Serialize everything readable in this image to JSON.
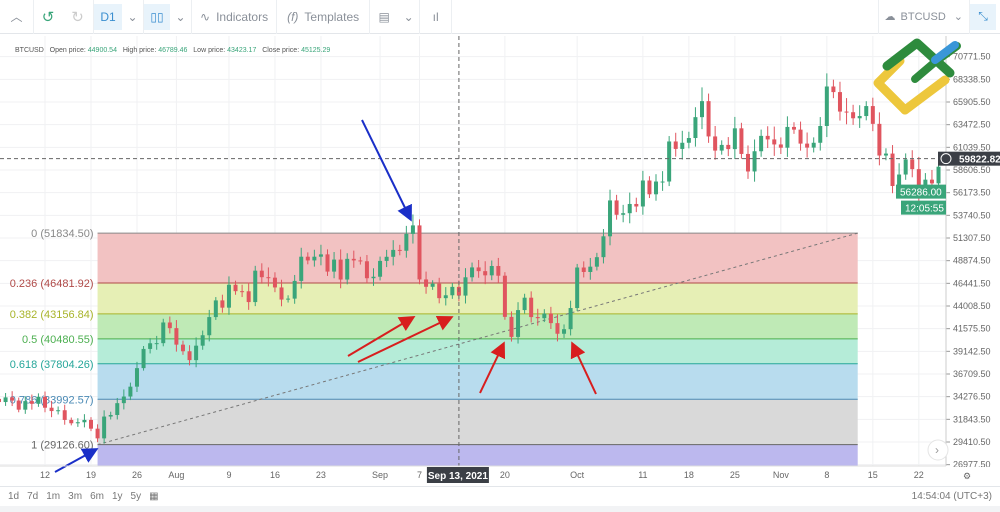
{
  "toolbar": {
    "timeframe": "D1",
    "indicators": "Indicators",
    "templates": "Templates",
    "symbol": "BTCUSD"
  },
  "legend": {
    "symbol": "BTCUSD",
    "open_label": "Open price:",
    "open": "44900.54",
    "high_label": "High price:",
    "high": "46789.46",
    "low_label": "Low price:",
    "low": "43423.17",
    "close_label": "Close price:",
    "close": "45125.29"
  },
  "price_axis": [
    "70771.50",
    "68338.50",
    "65905.50",
    "63472.50",
    "61039.50",
    "58606.50",
    "56173.50",
    "53740.50",
    "51307.50",
    "48874.50",
    "46441.50",
    "44008.50",
    "41575.50",
    "39142.50",
    "36709.50",
    "34276.50",
    "31843.50",
    "29410.50",
    "26977.50"
  ],
  "crosshair": {
    "price": "59822.82",
    "date": "Sep 13, 2021"
  },
  "last_price": {
    "price": "56286.00",
    "countdown": "12:05:55",
    "color": "#3aa57a"
  },
  "time_axis": [
    [
      "12",
      0
    ],
    [
      "19",
      7
    ],
    [
      "26",
      14
    ],
    [
      "Aug",
      20
    ],
    [
      "9",
      28
    ],
    [
      "16",
      35
    ],
    [
      "23",
      42
    ],
    [
      "Sep",
      51
    ],
    [
      "7",
      57
    ],
    [
      "20",
      70
    ],
    [
      "Oct",
      81
    ],
    [
      "11",
      91
    ],
    [
      "18",
      98
    ],
    [
      "25",
      105
    ],
    [
      "Nov",
      112
    ],
    [
      "8",
      119
    ],
    [
      "15",
      126
    ],
    [
      "22",
      133
    ]
  ],
  "fib": {
    "levels": [
      {
        "label": "0 (51834.50)",
        "ratio": 0,
        "price": 51834.5,
        "color": "#888888",
        "fill": "#f2c2c2"
      },
      {
        "label": "0.236 (46481.92)",
        "ratio": 0.236,
        "price": 46481.92,
        "color": "#b04a48",
        "fill": "#e6efb5"
      },
      {
        "label": "0.382 (43156.84)",
        "ratio": 0.382,
        "price": 43156.84,
        "color": "#a8b42a",
        "fill": "#bfeab6"
      },
      {
        "label": "0.5 (40480.55)",
        "ratio": 0.5,
        "price": 40480.55,
        "color": "#4caf50",
        "fill": "#b5ecd8"
      },
      {
        "label": "0.618 (37804.26)",
        "ratio": 0.618,
        "price": 37804.26,
        "color": "#26a69a",
        "fill": "#b8dcee"
      },
      {
        "label": "0.786 (33992.57)",
        "ratio": 0.786,
        "price": 33992.57,
        "color": "#4a8ab5",
        "fill": "#d9d9d9"
      },
      {
        "label": "1 (29126.60)",
        "ratio": 1,
        "price": 29126.6,
        "color": "#666666",
        "fill": "#bcb8ee"
      }
    ]
  },
  "range_buttons": [
    "1d",
    "7d",
    "1m",
    "3m",
    "6m",
    "1y",
    "5y"
  ],
  "clock": "14:54:04 (UTC+3)",
  "colors": {
    "up": "#3aa57a",
    "down": "#e0555f",
    "arrow_blue": "#1a2fc8",
    "arrow_red": "#d81e1e"
  },
  "chart_data": {
    "type": "candlestick",
    "symbol": "BTCUSD",
    "interval": "D1",
    "year": 2021,
    "closes": [
      [
        "07-05",
        33700
      ],
      [
        "07-06",
        34200
      ],
      [
        "07-07",
        33860
      ],
      [
        "07-08",
        32880
      ],
      [
        "07-09",
        33800
      ],
      [
        "07-10",
        33510
      ],
      [
        "07-11",
        34260
      ],
      [
        "07-12",
        33090
      ],
      [
        "07-13",
        32730
      ],
      [
        "07-14",
        32820
      ],
      [
        "07-15",
        31780
      ],
      [
        "07-16",
        31420
      ],
      [
        "07-17",
        31530
      ],
      [
        "07-18",
        31780
      ],
      [
        "07-19",
        30840
      ],
      [
        "07-20",
        29800
      ],
      [
        "07-21",
        32140
      ],
      [
        "07-22",
        32310
      ],
      [
        "07-23",
        33580
      ],
      [
        "07-24",
        34290
      ],
      [
        "07-25",
        35350
      ],
      [
        "07-26",
        37340
      ],
      [
        "07-27",
        39400
      ],
      [
        "07-28",
        40010
      ],
      [
        "07-29",
        40020
      ],
      [
        "07-30",
        42240
      ],
      [
        "07-31",
        41630
      ],
      [
        "08-01",
        39860
      ],
      [
        "08-02",
        39150
      ],
      [
        "08-03",
        38200
      ],
      [
        "08-04",
        39750
      ],
      [
        "08-05",
        40870
      ],
      [
        "08-06",
        42820
      ],
      [
        "08-07",
        44610
      ],
      [
        "08-08",
        43830
      ],
      [
        "08-09",
        46290
      ],
      [
        "08-10",
        45600
      ],
      [
        "08-11",
        45590
      ],
      [
        "08-12",
        44430
      ],
      [
        "08-13",
        47800
      ],
      [
        "08-14",
        47100
      ],
      [
        "08-15",
        47050
      ],
      [
        "08-16",
        46000
      ],
      [
        "08-17",
        44700
      ],
      [
        "08-18",
        44800
      ],
      [
        "08-19",
        46700
      ],
      [
        "08-20",
        49300
      ],
      [
        "08-21",
        48900
      ],
      [
        "08-22",
        49300
      ],
      [
        "08-23",
        49550
      ],
      [
        "08-24",
        47700
      ],
      [
        "08-25",
        48990
      ],
      [
        "08-26",
        46850
      ],
      [
        "08-27",
        49070
      ],
      [
        "08-28",
        48900
      ],
      [
        "08-29",
        48810
      ],
      [
        "08-30",
        46990
      ],
      [
        "08-31",
        47150
      ],
      [
        "09-01",
        48850
      ],
      [
        "09-02",
        49290
      ],
      [
        "09-03",
        50030
      ],
      [
        "09-04",
        49940
      ],
      [
        "09-05",
        51750
      ],
      [
        "09-06",
        52660
      ],
      [
        "09-07",
        46860
      ],
      [
        "09-08",
        46070
      ],
      [
        "09-09",
        46400
      ],
      [
        "09-10",
        44850
      ],
      [
        "09-11",
        45160
      ],
      [
        "09-12",
        46060
      ],
      [
        "09-13",
        45125
      ],
      [
        "09-14",
        47090
      ],
      [
        "09-15",
        48150
      ],
      [
        "09-16",
        47750
      ],
      [
        "09-17",
        47300
      ],
      [
        "09-18",
        48300
      ],
      [
        "09-19",
        47260
      ],
      [
        "09-20",
        42840
      ],
      [
        "09-21",
        40690
      ],
      [
        "09-22",
        43570
      ],
      [
        "09-23",
        44900
      ],
      [
        "09-24",
        42820
      ],
      [
        "09-25",
        42700
      ],
      [
        "09-26",
        43200
      ],
      [
        "09-27",
        42170
      ],
      [
        "09-28",
        41030
      ],
      [
        "09-29",
        41520
      ],
      [
        "09-30",
        43790
      ],
      [
        "10-01",
        48140
      ],
      [
        "10-02",
        47660
      ],
      [
        "10-03",
        48230
      ],
      [
        "10-04",
        49250
      ],
      [
        "10-05",
        51490
      ],
      [
        "10-06",
        55340
      ],
      [
        "10-07",
        53800
      ],
      [
        "10-08",
        53970
      ],
      [
        "10-09",
        54960
      ],
      [
        "10-10",
        54690
      ],
      [
        "10-11",
        57480
      ],
      [
        "10-12",
        56000
      ],
      [
        "10-13",
        57370
      ],
      [
        "10-14",
        57370
      ],
      [
        "10-15",
        61670
      ],
      [
        "10-16",
        60870
      ],
      [
        "10-17",
        61530
      ],
      [
        "10-18",
        62040
      ],
      [
        "10-19",
        64280
      ],
      [
        "10-20",
        66000
      ],
      [
        "10-21",
        62210
      ],
      [
        "10-22",
        60690
      ],
      [
        "10-23",
        61300
      ],
      [
        "10-24",
        60850
      ],
      [
        "10-25",
        63080
      ],
      [
        "10-26",
        60330
      ],
      [
        "10-27",
        58450
      ],
      [
        "10-28",
        60620
      ],
      [
        "10-29",
        62270
      ],
      [
        "10-30",
        61890
      ],
      [
        "10-31",
        61350
      ],
      [
        "11-01",
        61000
      ],
      [
        "11-02",
        63230
      ],
      [
        "11-03",
        62940
      ],
      [
        "11-04",
        61440
      ],
      [
        "11-05",
        61010
      ],
      [
        "11-06",
        61530
      ],
      [
        "11-07",
        63330
      ],
      [
        "11-08",
        67570
      ],
      [
        "11-09",
        66970
      ],
      [
        "11-10",
        64880
      ],
      [
        "11-11",
        64810
      ],
      [
        "11-12",
        64160
      ],
      [
        "11-13",
        64400
      ],
      [
        "11-14",
        65470
      ],
      [
        "11-15",
        63560
      ],
      [
        "11-16",
        60160
      ],
      [
        "11-17",
        60370
      ],
      [
        "11-18",
        56890
      ],
      [
        "11-19",
        58120
      ],
      [
        "11-20",
        59740
      ],
      [
        "11-21",
        58700
      ],
      [
        "11-22",
        56290
      ],
      [
        "11-23",
        57570
      ],
      [
        "11-24",
        57170
      ],
      [
        "11-25",
        58960
      ],
      [
        "11-26",
        53730
      ],
      [
        "11-27",
        54720
      ]
    ]
  }
}
